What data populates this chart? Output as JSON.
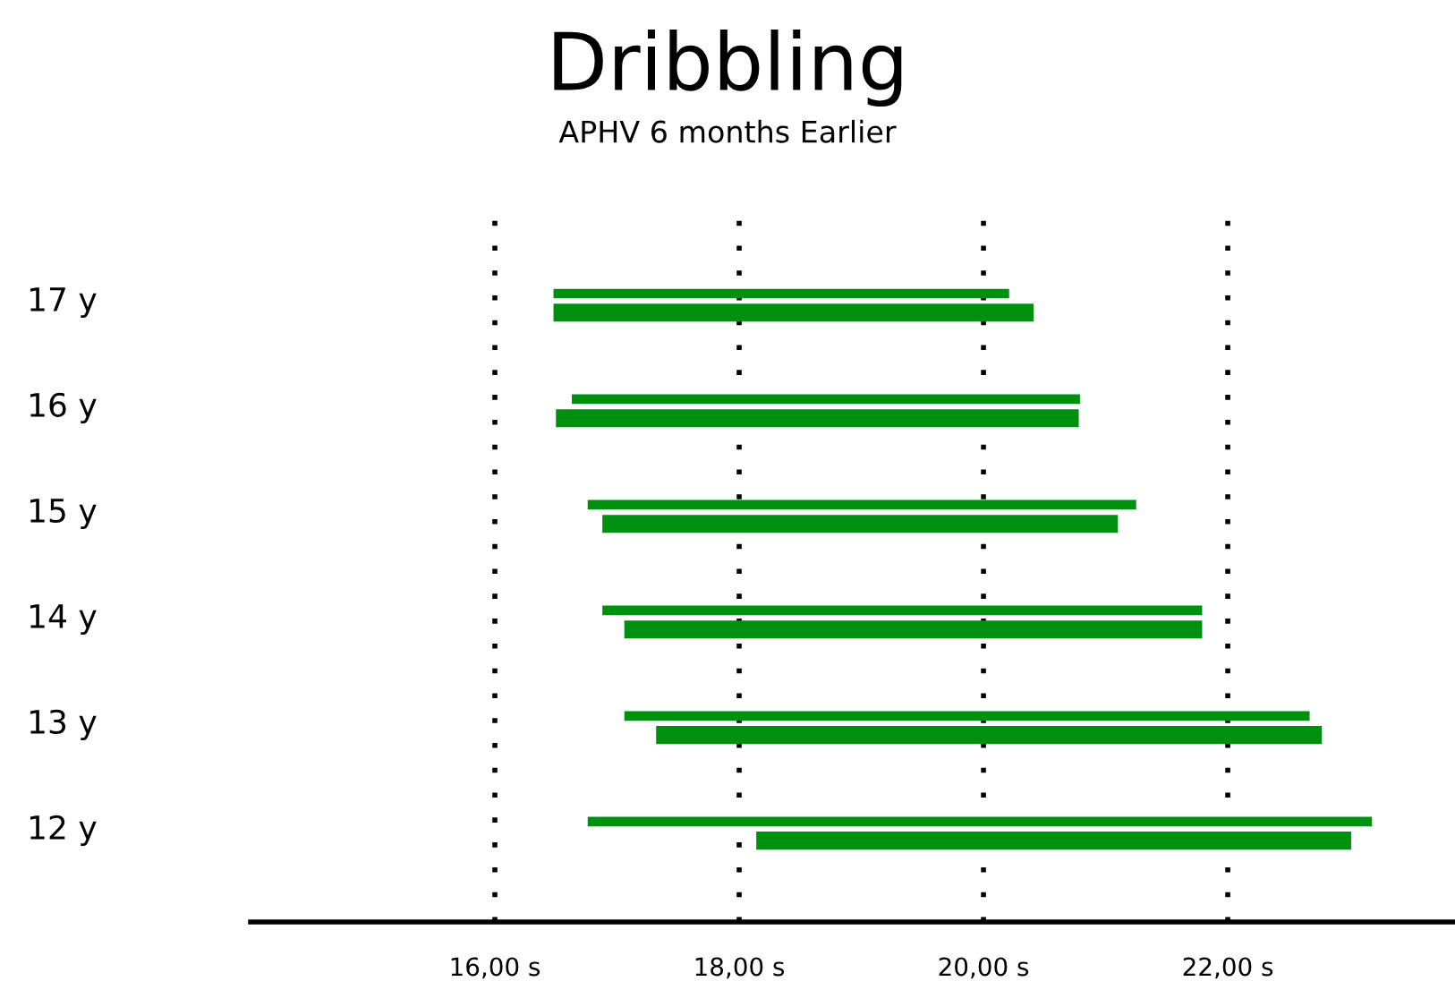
{
  "chart_data": {
    "type": "bar",
    "orientation": "horizontal",
    "title": "Dribbling",
    "subtitle": "APHV 6 months Earlier",
    "categories": [
      "17 y",
      "16 y",
      "15 y",
      "14 y",
      "13 y",
      "12 y"
    ],
    "series": [
      {
        "color": "#009010",
        "base": [
          16.48,
          16.63,
          16.76,
          16.88,
          17.06,
          16.76
        ],
        "values": [
          3.73,
          4.16,
          4.49,
          4.91,
          5.61,
          6.42
        ]
      },
      {
        "color": "#009010",
        "base": [
          16.48,
          16.5,
          16.88,
          17.06,
          17.32,
          18.14
        ],
        "values": [
          3.93,
          4.28,
          4.22,
          4.73,
          5.45,
          4.87
        ]
      }
    ],
    "xlim": [
      14,
      23.86
    ],
    "xticks": [
      {
        "value": 16,
        "label": "16,00 s"
      },
      {
        "value": 18,
        "label": "18,00 s"
      },
      {
        "value": 20,
        "label": "20,00 s"
      },
      {
        "value": 22,
        "label": "22,00 s"
      }
    ],
    "grid": "x"
  }
}
